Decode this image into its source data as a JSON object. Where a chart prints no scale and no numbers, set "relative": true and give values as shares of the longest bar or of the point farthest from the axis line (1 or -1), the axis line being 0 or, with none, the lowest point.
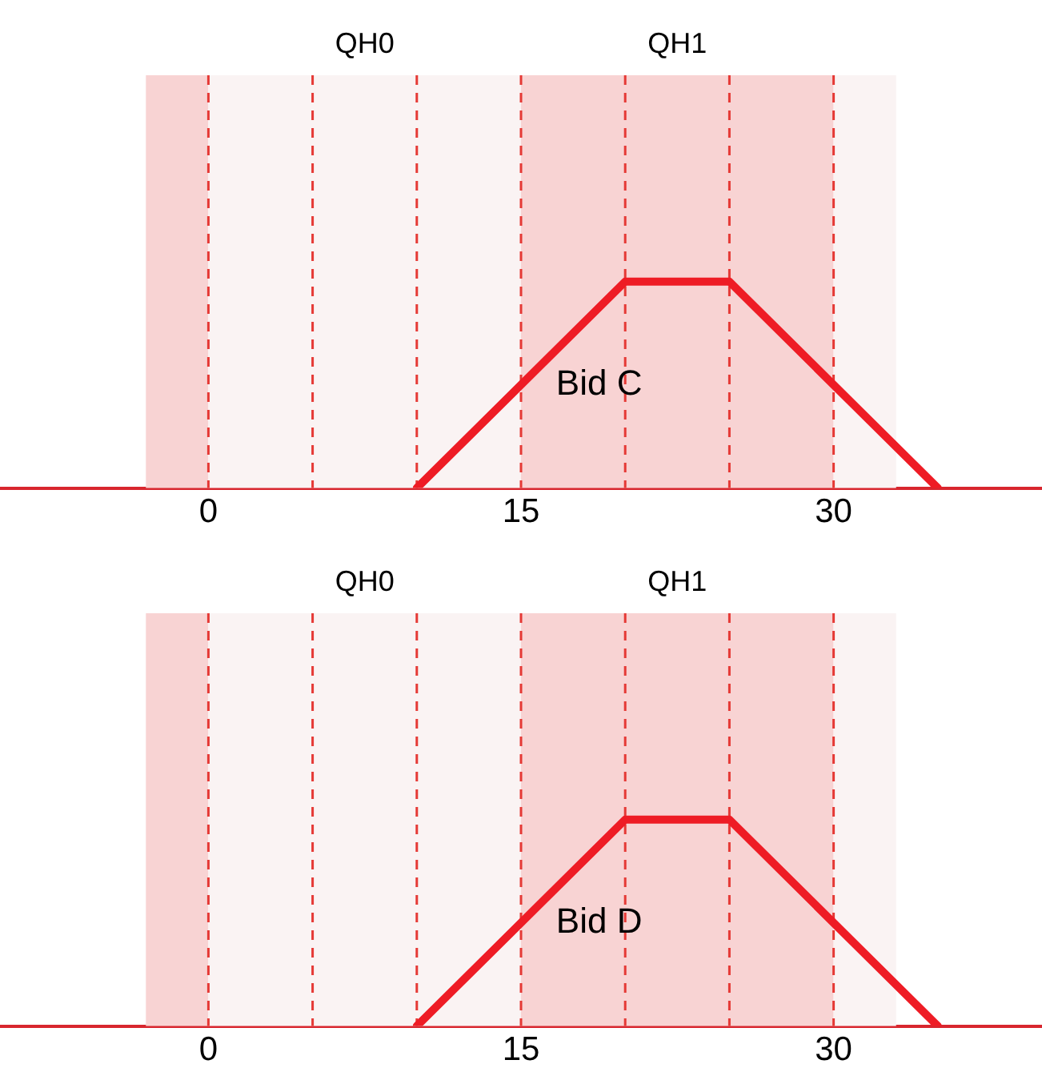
{
  "chart_data": [
    {
      "type": "line",
      "relative": true,
      "xlim": [
        -10,
        40
      ],
      "xticks": [
        0,
        15,
        30
      ],
      "tick_labels": "x",
      "grid": false,
      "line_style": "solid",
      "marker": "none",
      "series": [
        {
          "color": "#ee1c25",
          "x": [
            10,
            20,
            25,
            35
          ],
          "values": [
            0,
            1,
            1,
            0
          ]
        }
      ],
      "bands": [
        {
          "axis": "x",
          "from": -3,
          "to": 0,
          "color": "#f8d3d3"
        },
        {
          "axis": "x",
          "from": 0,
          "to": 15,
          "color": "#faf3f3",
          "label": "QH0"
        },
        {
          "axis": "x",
          "from": 15,
          "to": 30,
          "color": "#f8d3d3",
          "label": "QH1"
        },
        {
          "axis": "x",
          "from": 30,
          "to": 33,
          "color": "#faf3f3"
        }
      ],
      "ref_lines": [
        {
          "axis": "x",
          "value": 0,
          "color": "#e53935",
          "line_style": "dashed"
        },
        {
          "axis": "x",
          "value": 5,
          "color": "#e53935",
          "line_style": "dashed"
        },
        {
          "axis": "x",
          "value": 10,
          "color": "#e53935",
          "line_style": "dashed"
        },
        {
          "axis": "x",
          "value": 15,
          "color": "#e53935",
          "line_style": "dashed"
        },
        {
          "axis": "x",
          "value": 20,
          "color": "#e53935",
          "line_style": "dashed"
        },
        {
          "axis": "x",
          "value": 25,
          "color": "#e53935",
          "line_style": "dashed"
        },
        {
          "axis": "x",
          "value": 30,
          "color": "#e53935",
          "line_style": "dashed"
        }
      ],
      "annotations": [
        "Bid C"
      ]
    },
    {
      "type": "line",
      "relative": true,
      "xlim": [
        -10,
        40
      ],
      "xticks": [
        0,
        15,
        30
      ],
      "tick_labels": "x",
      "grid": false,
      "line_style": "solid",
      "marker": "none",
      "series": [
        {
          "color": "#ee1c25",
          "x": [
            10,
            20,
            25,
            35
          ],
          "values": [
            0,
            1,
            1,
            0
          ]
        }
      ],
      "bands": [
        {
          "axis": "x",
          "from": -3,
          "to": 0,
          "color": "#f8d3d3"
        },
        {
          "axis": "x",
          "from": 0,
          "to": 15,
          "color": "#faf3f3",
          "label": "QH0"
        },
        {
          "axis": "x",
          "from": 15,
          "to": 30,
          "color": "#f8d3d3",
          "label": "QH1"
        },
        {
          "axis": "x",
          "from": 30,
          "to": 33,
          "color": "#faf3f3"
        }
      ],
      "ref_lines": [
        {
          "axis": "x",
          "value": 0,
          "color": "#e53935",
          "line_style": "dashed"
        },
        {
          "axis": "x",
          "value": 5,
          "color": "#e53935",
          "line_style": "dashed"
        },
        {
          "axis": "x",
          "value": 10,
          "color": "#e53935",
          "line_style": "dashed"
        },
        {
          "axis": "x",
          "value": 15,
          "color": "#e53935",
          "line_style": "dashed"
        },
        {
          "axis": "x",
          "value": 20,
          "color": "#e53935",
          "line_style": "dashed"
        },
        {
          "axis": "x",
          "value": 25,
          "color": "#e53935",
          "line_style": "dashed"
        },
        {
          "axis": "x",
          "value": 30,
          "color": "#e53935",
          "line_style": "dashed"
        }
      ],
      "annotations": [
        "Bid D"
      ]
    }
  ]
}
